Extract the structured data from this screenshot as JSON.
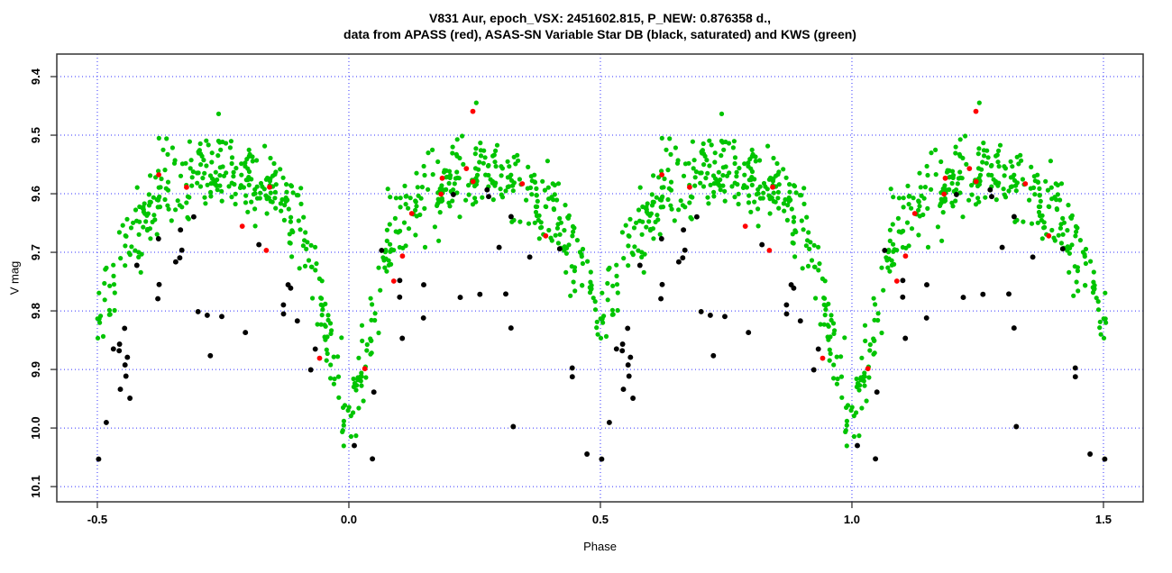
{
  "chart_data": {
    "type": "scatter",
    "title_line1": "V831 Aur, epoch_VSX: 2451602.815, P_NEW: 0.876358 d.,",
    "title_line2": "data from APASS (red), ASAS-SN Variable Star DB (black, saturated) and KWS (green)",
    "xlabel": "Phase",
    "ylabel": "V mag",
    "x_ticks": [
      -0.5,
      0.0,
      0.5,
      1.0,
      1.5
    ],
    "x_tick_labels": [
      "-0.5",
      "0.0",
      "0.5",
      "1.0",
      "1.5"
    ],
    "y_ticks": [
      9.4,
      9.5,
      9.6,
      9.7,
      9.8,
      9.9,
      10.0,
      10.1
    ],
    "y_tick_labels": [
      "9.4",
      "9.5",
      "9.6",
      "9.7",
      "9.8",
      "9.9",
      "10.0",
      "10.1"
    ],
    "xlim": [
      -0.5806,
      1.5789
    ],
    "ylim": [
      10.126,
      9.3615
    ],
    "y_axis_inverted": true,
    "grid": {
      "show": true,
      "color": "#3333FF",
      "style": "dotted"
    },
    "axis_color": "#333333",
    "text_color": "#000000",
    "phase_duplication_range": [
      -0.505,
      1.505
    ],
    "light_curve_model": {
      "description": "mean V magnitude vs phase, folded and symmetric: mag(p)=mag(1-p); eclipsing binary with primary minimum at phase 0.0 (V~10.0) and secondary minimum at phase 0.5 (V~9.81), maxima V~9.55 at quadratures",
      "phase": [
        0.0,
        0.01,
        0.02,
        0.03,
        0.045,
        0.06,
        0.08,
        0.1,
        0.13,
        0.16,
        0.2,
        0.25,
        0.3,
        0.34,
        0.37,
        0.4,
        0.42,
        0.44,
        0.46,
        0.48,
        0.5
      ],
      "mag": [
        9.99,
        9.965,
        9.93,
        9.885,
        9.83,
        9.77,
        9.7,
        9.655,
        9.615,
        9.59,
        9.57,
        9.556,
        9.57,
        9.585,
        9.605,
        9.63,
        9.655,
        9.69,
        9.73,
        9.775,
        9.81
      ]
    },
    "series": [
      {
        "id": "kws",
        "name": "KWS",
        "color": "#00C400",
        "n_points": 640,
        "mag_offset": 0.0,
        "mag_sigma": 0.034,
        "phase_sigma": 0.0045,
        "marker": "filled-circle",
        "radius": 2.6,
        "seed": 11
      },
      {
        "id": "asassn",
        "name": "ASAS-SN Variable Star DB",
        "color": "#000000",
        "n_points": 58,
        "mag_offset": 0.17,
        "mag_sigma": 0.085,
        "phase_sigma": 0.005,
        "marker": "filled-circle",
        "radius": 2.95,
        "seed": 7
      },
      {
        "id": "apass",
        "name": "APASS",
        "color": "#FF0000",
        "n_points": 17,
        "mag_offset": 0.02,
        "mag_sigma": 0.075,
        "phase_sigma": 0.003,
        "marker": "filled-circle",
        "radius": 2.9,
        "seed": 23
      }
    ],
    "mag_clip": [
      9.372,
      10.108
    ]
  }
}
